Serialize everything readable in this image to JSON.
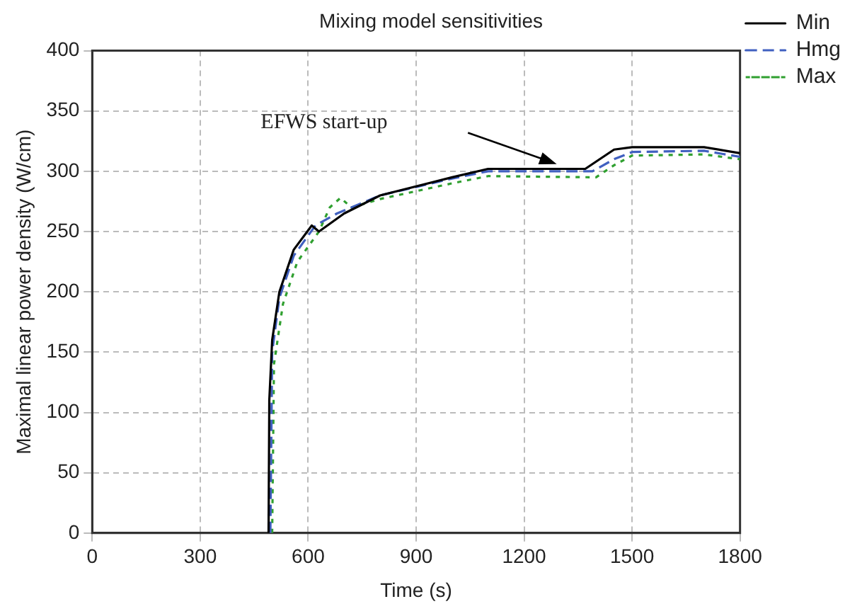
{
  "chart_data": {
    "type": "line",
    "title": "Mixing model sensitivities",
    "xlabel": "Time (s)",
    "ylabel": "Maximal linear power density (W/cm)",
    "series": [
      {
        "name": "Min",
        "color": "#000000",
        "line_style": "solid",
        "x": [
          490,
          492,
          500,
          520,
          560,
          610,
          630,
          700,
          800,
          1000,
          1100,
          1370,
          1400,
          1450,
          1500,
          1700,
          1800
        ],
        "values": [
          0,
          110,
          160,
          200,
          235,
          255,
          250,
          265,
          280,
          295,
          302,
          302,
          308,
          318,
          320,
          320,
          315
        ]
      },
      {
        "name": "Hmg",
        "color": "#4060c0",
        "line_style": "dashed",
        "x": [
          495,
          500,
          520,
          560,
          620,
          680,
          800,
          1000,
          1100,
          1390,
          1450,
          1500,
          1700,
          1800
        ],
        "values": [
          0,
          150,
          195,
          230,
          255,
          265,
          280,
          294,
          300,
          300,
          310,
          316,
          317,
          312
        ]
      },
      {
        "name": "Max",
        "color": "#30a030",
        "line_style": "dotted",
        "x": [
          500,
          505,
          530,
          570,
          630,
          660,
          690,
          720,
          800,
          1000,
          1100,
          1400,
          1450,
          1500,
          1700,
          1800
        ],
        "values": [
          0,
          140,
          190,
          225,
          250,
          270,
          278,
          270,
          277,
          290,
          296,
          295,
          305,
          313,
          314,
          310
        ]
      }
    ],
    "xlim": [
      0,
      1800
    ],
    "xticks": [
      0,
      300,
      600,
      900,
      1200,
      1500,
      1800
    ],
    "ylim": [
      0,
      400
    ],
    "yticks": [
      0,
      50,
      100,
      150,
      200,
      250,
      300,
      350,
      400
    ],
    "grid": true,
    "legend": "top right",
    "marker": "none",
    "annotations": [
      "EFWS start-up"
    ]
  }
}
